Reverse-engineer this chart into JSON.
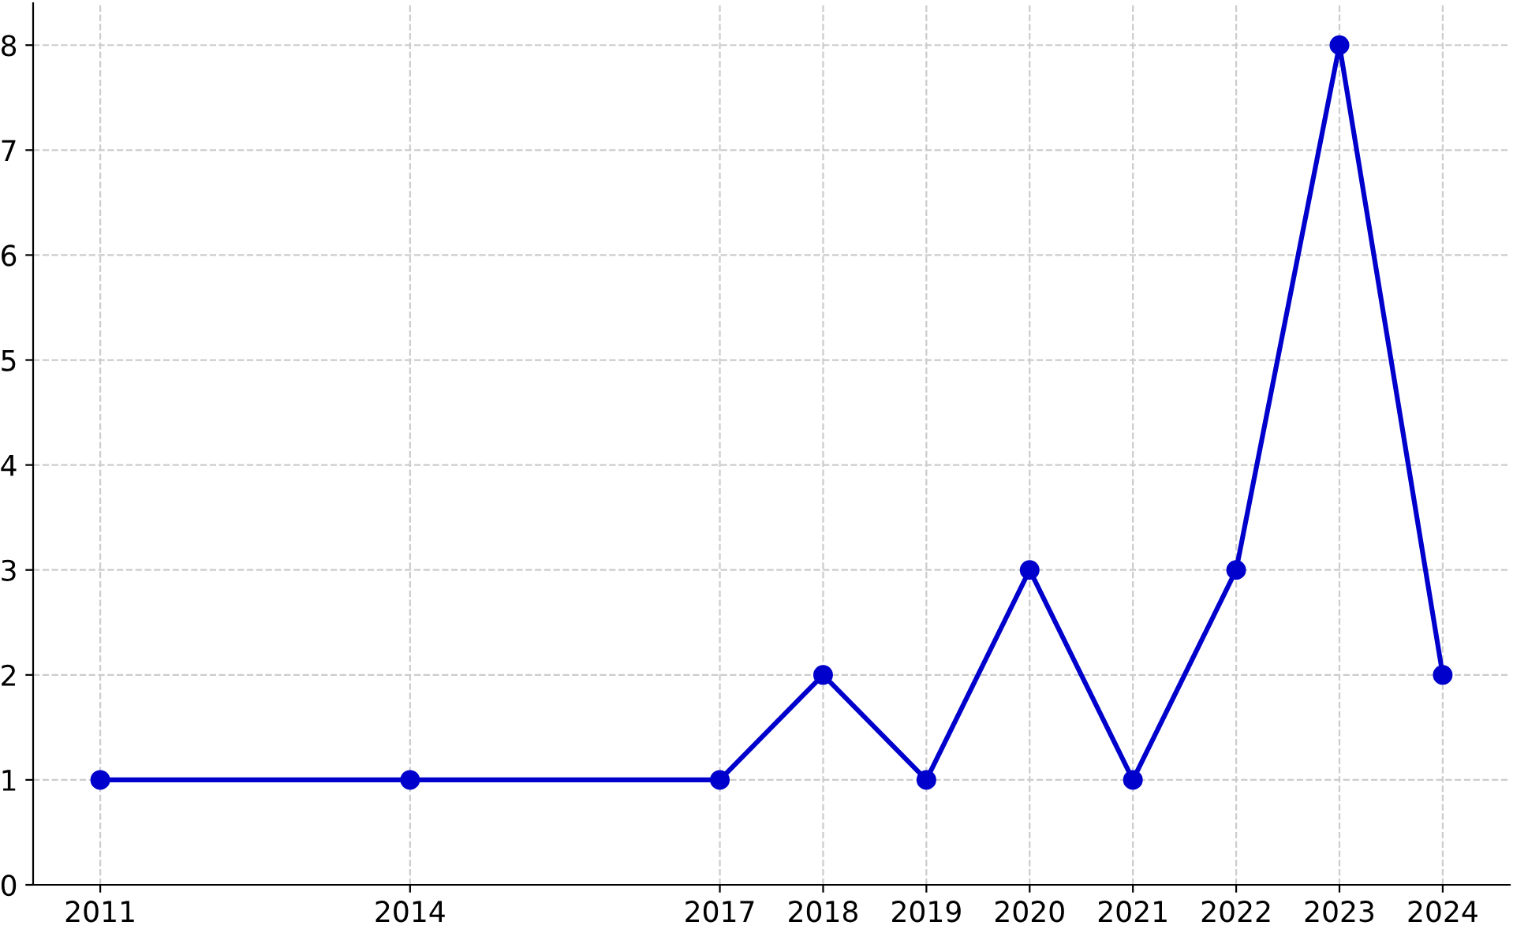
{
  "chart_data": {
    "type": "line",
    "x": [
      2011,
      2014,
      2017,
      2018,
      2019,
      2020,
      2021,
      2022,
      2023,
      2024
    ],
    "series": [
      {
        "color": "#0000cc",
        "values": [
          1,
          1,
          1,
          2,
          1,
          3,
          1,
          3,
          8,
          2
        ]
      }
    ],
    "xlim": [
      2010.35,
      2024.65
    ],
    "xticks": [
      2011,
      2014,
      2017,
      2018,
      2019,
      2020,
      2021,
      2022,
      2023,
      2024
    ],
    "ylim": [
      0,
      8.4
    ],
    "yticks": [
      0,
      1,
      2,
      3,
      4,
      5,
      6,
      7,
      8
    ],
    "grid": true,
    "marker": "circle",
    "line_style": "solid",
    "legend": false
  }
}
